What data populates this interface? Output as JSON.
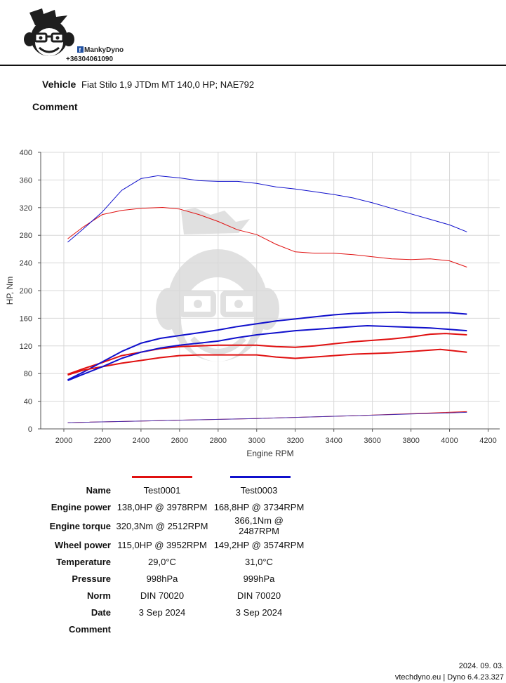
{
  "brand": {
    "facebook_name": "MankyDyno",
    "phone": "+36304061090"
  },
  "vehicle": {
    "label": "Vehicle",
    "value": "Fiat Stilo 1,9 JTDm MT 140,0 HP; NAE792"
  },
  "comment": {
    "label": "Comment",
    "value": ""
  },
  "colors": {
    "test1": "#e01010",
    "test2": "#1010cc",
    "loss": "#5a22a0",
    "grid": "#d8d8d8"
  },
  "chart_data": {
    "type": "line",
    "xlabel": "Engine RPM",
    "ylabel": "HP, Nm",
    "xlim": [
      1880,
      4260
    ],
    "ylim": [
      0,
      400
    ],
    "xticks": [
      2000,
      2200,
      2400,
      2600,
      2800,
      3000,
      3200,
      3400,
      3600,
      3800,
      4000,
      4200
    ],
    "yticks": [
      0,
      40,
      80,
      120,
      160,
      200,
      240,
      280,
      320,
      360,
      400
    ],
    "grid": true,
    "series": [
      {
        "name": "Test0001",
        "quantity": "torque",
        "color": "#e01010",
        "width": 1,
        "x": [
          2020,
          2100,
          2200,
          2300,
          2400,
          2512,
          2600,
          2700,
          2800,
          2900,
          3000,
          3100,
          3200,
          3300,
          3400,
          3500,
          3600,
          3700,
          3800,
          3900,
          4000,
          4090
        ],
        "y": [
          275,
          292,
          310,
          316,
          319,
          320.3,
          318,
          310,
          300,
          288,
          281,
          267,
          256,
          254,
          254,
          252,
          249,
          246,
          245,
          246,
          243,
          234
        ]
      },
      {
        "name": "Test0003",
        "quantity": "torque",
        "color": "#1010cc",
        "width": 1,
        "x": [
          2020,
          2100,
          2200,
          2300,
          2400,
          2487,
          2600,
          2700,
          2800,
          2900,
          3000,
          3100,
          3200,
          3300,
          3400,
          3500,
          3600,
          3700,
          3800,
          3900,
          4000,
          4090
        ],
        "y": [
          270,
          289,
          314,
          345,
          362,
          366.1,
          363,
          359,
          358,
          358,
          355,
          350,
          347,
          343,
          339,
          334,
          327,
          319,
          311,
          303,
          295,
          285
        ]
      },
      {
        "name": "Test0001",
        "quantity": "engine power",
        "color": "#e01010",
        "width": 2,
        "x": [
          2020,
          2100,
          2200,
          2300,
          2400,
          2500,
          2600,
          2700,
          2800,
          2900,
          3000,
          3100,
          3200,
          3300,
          3400,
          3500,
          3600,
          3700,
          3800,
          3900,
          3978,
          4090
        ],
        "y": [
          79,
          87,
          96,
          106,
          111,
          116,
          119,
          120,
          121,
          121,
          121,
          119,
          118,
          120,
          123,
          126,
          128,
          130,
          133,
          137,
          138,
          136
        ]
      },
      {
        "name": "Test0003",
        "quantity": "engine power",
        "color": "#1010cc",
        "width": 2,
        "x": [
          2020,
          2100,
          2200,
          2300,
          2400,
          2500,
          2600,
          2700,
          2800,
          2900,
          3000,
          3100,
          3200,
          3300,
          3400,
          3500,
          3600,
          3734,
          3800,
          3900,
          4000,
          4090
        ],
        "y": [
          71,
          82,
          97,
          112,
          124,
          131,
          135,
          139,
          143,
          148,
          152,
          156,
          159,
          162,
          165,
          167,
          168,
          168.8,
          168,
          168,
          168,
          166
        ]
      },
      {
        "name": "Test0001",
        "quantity": "wheel power",
        "color": "#e01010",
        "width": 2,
        "x": [
          2020,
          2100,
          2200,
          2300,
          2400,
          2500,
          2600,
          2700,
          2800,
          2900,
          3000,
          3100,
          3200,
          3300,
          3400,
          3500,
          3600,
          3700,
          3800,
          3952,
          4090
        ],
        "y": [
          78,
          85,
          90,
          95,
          99,
          103,
          106,
          107,
          107,
          107,
          107,
          104,
          102,
          104,
          106,
          108,
          109,
          110,
          112,
          115,
          111
        ]
      },
      {
        "name": "Test0003",
        "quantity": "wheel power",
        "color": "#1010cc",
        "width": 2,
        "x": [
          2020,
          2100,
          2200,
          2300,
          2400,
          2500,
          2600,
          2700,
          2800,
          2900,
          3000,
          3100,
          3200,
          3300,
          3400,
          3500,
          3574,
          3700,
          3800,
          3900,
          4000,
          4090
        ],
        "y": [
          70,
          79,
          90,
          102,
          111,
          117,
          121,
          124,
          127,
          132,
          136,
          139,
          142,
          144,
          146,
          148,
          149.2,
          148,
          147,
          146,
          144,
          142
        ]
      },
      {
        "name": "Test0001",
        "quantity": "loss",
        "color": "#e01010",
        "width": 1,
        "x": [
          2020,
          2500,
          3000,
          3500,
          4090
        ],
        "y": [
          9,
          12,
          15,
          19,
          25
        ]
      },
      {
        "name": "Test0003",
        "quantity": "loss",
        "color": "#4a30b0",
        "width": 1,
        "x": [
          2020,
          2500,
          3000,
          3500,
          4090
        ],
        "y": [
          9,
          12,
          15,
          19,
          24
        ]
      }
    ]
  },
  "results": {
    "rows": [
      {
        "label": "Name",
        "test1": "Test0001",
        "test2": "Test0003"
      },
      {
        "label": "Engine power",
        "test1": "138,0HP @ 3978RPM",
        "test2": "168,8HP @ 3734RPM"
      },
      {
        "label": "Engine torque",
        "test1": "320,3Nm @ 2512RPM",
        "test2": "366,1Nm @ 2487RPM"
      },
      {
        "label": "Wheel power",
        "test1": "115,0HP @ 3952RPM",
        "test2": "149,2HP @ 3574RPM"
      },
      {
        "label": "Temperature",
        "test1": "29,0°C",
        "test2": "31,0°C"
      },
      {
        "label": "Pressure",
        "test1": "998hPa",
        "test2": "999hPa"
      },
      {
        "label": "Norm",
        "test1": "DIN 70020",
        "test2": "DIN 70020"
      },
      {
        "label": "Date",
        "test1": "3 Sep 2024",
        "test2": "3 Sep 2024"
      },
      {
        "label": "Comment",
        "test1": "",
        "test2": ""
      }
    ]
  },
  "footer": {
    "date": "2024. 09. 03.",
    "credit": "vtechdyno.eu | Dyno 6.4.23.327"
  }
}
